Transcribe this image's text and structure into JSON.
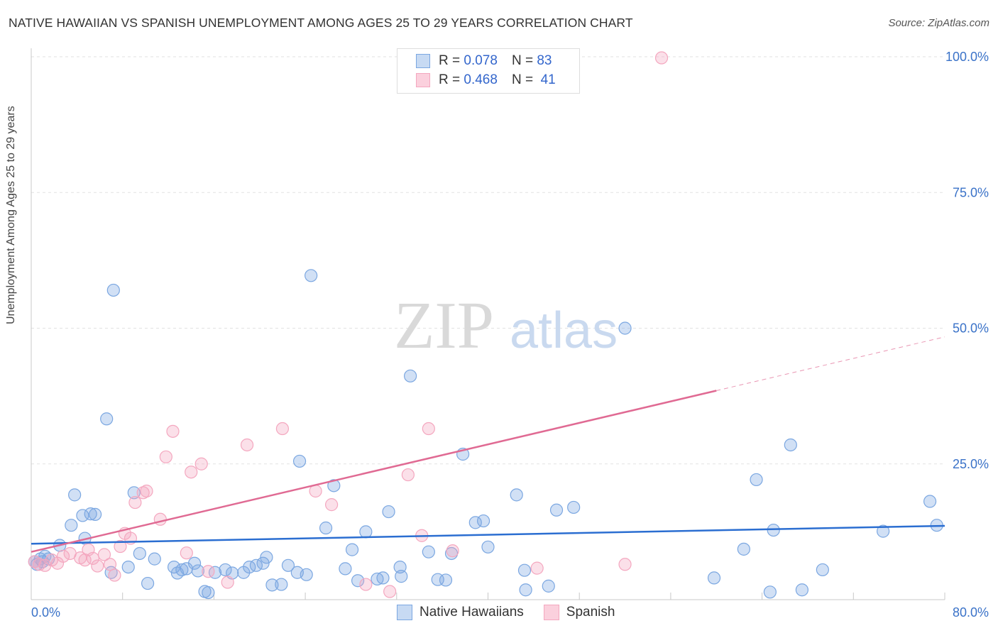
{
  "title": "NATIVE HAWAIIAN VS SPANISH UNEMPLOYMENT AMONG AGES 25 TO 29 YEARS CORRELATION CHART",
  "source": "Source: ZipAtlas.com",
  "watermark": {
    "zip": "ZIP",
    "atlas": "atlas"
  },
  "legend_top": {
    "rows": [
      {
        "r_label": "R =",
        "r_value": "0.078",
        "n_label": "N =",
        "n_value": "83",
        "color": "#7ba7e1"
      },
      {
        "r_label": "R =",
        "r_value": "0.468",
        "n_label": "N =",
        "n_value": "41",
        "color": "#f4a7bf"
      }
    ]
  },
  "legend_bottom": [
    {
      "label": "Native Hawaiians",
      "color": "#7ba7e1"
    },
    {
      "label": "Spanish",
      "color": "#f4a7bf"
    }
  ],
  "chart_data": {
    "type": "scatter",
    "title": "NATIVE HAWAIIAN VS SPANISH UNEMPLOYMENT AMONG AGES 25 TO 29 YEARS CORRELATION CHART",
    "xlabel": "",
    "ylabel": "Unemployment Among Ages 25 to 29 years",
    "xlim": [
      0,
      80
    ],
    "ylim": [
      0,
      100
    ],
    "x_tick_labels": [
      "0.0%",
      "80.0%"
    ],
    "y_tick_labels": [
      "25.0%",
      "50.0%",
      "75.0%",
      "100.0%"
    ],
    "y_ticks": [
      25,
      50,
      75,
      100
    ],
    "grid": true,
    "legend_position": "top-center",
    "series": [
      {
        "name": "Native Hawaiians",
        "color": "#7ba7e1",
        "line_color": "#2b6ed1",
        "trend": {
          "x": [
            0,
            80
          ],
          "y": [
            10.3,
            13.6
          ]
        },
        "points": [
          [
            0.3,
            7
          ],
          [
            0.5,
            6.5
          ],
          [
            0.8,
            7.5
          ],
          [
            1,
            7
          ],
          [
            1.2,
            8
          ],
          [
            1.5,
            7.5
          ],
          [
            2.5,
            10
          ],
          [
            3.5,
            13.7
          ],
          [
            3.8,
            19.3
          ],
          [
            4.5,
            15.5
          ],
          [
            4.7,
            11.3
          ],
          [
            5.2,
            15.8
          ],
          [
            5.6,
            15.7
          ],
          [
            6.6,
            33.3
          ],
          [
            7,
            5
          ],
          [
            7.2,
            57
          ],
          [
            8.5,
            6
          ],
          [
            9,
            19.7
          ],
          [
            9.5,
            8.5
          ],
          [
            10.2,
            3
          ],
          [
            10.8,
            7.5
          ],
          [
            12.5,
            6
          ],
          [
            12.8,
            4.9
          ],
          [
            13.2,
            5.5
          ],
          [
            13.6,
            5.7
          ],
          [
            14.3,
            6.7
          ],
          [
            14.6,
            5.3
          ],
          [
            15.2,
            1.5
          ],
          [
            15.5,
            1.3
          ],
          [
            16.1,
            5
          ],
          [
            17,
            5.5
          ],
          [
            17.6,
            4.9
          ],
          [
            18.6,
            5
          ],
          [
            19.1,
            6
          ],
          [
            19.7,
            6.3
          ],
          [
            20.3,
            6.7
          ],
          [
            20.6,
            7.8
          ],
          [
            21.1,
            2.7
          ],
          [
            21.9,
            2.8
          ],
          [
            22.5,
            6.3
          ],
          [
            23.3,
            5
          ],
          [
            24.1,
            4.6
          ],
          [
            23.5,
            25.5
          ],
          [
            24.5,
            59.7
          ],
          [
            25.8,
            13.2
          ],
          [
            26.5,
            21
          ],
          [
            27.5,
            5.7
          ],
          [
            28.1,
            9.2
          ],
          [
            28.6,
            3.5
          ],
          [
            29.3,
            12.5
          ],
          [
            30.3,
            3.8
          ],
          [
            30.8,
            4
          ],
          [
            31.3,
            16.2
          ],
          [
            32.3,
            6
          ],
          [
            32.4,
            4.3
          ],
          [
            33.2,
            41.2
          ],
          [
            34.8,
            8.8
          ],
          [
            35.6,
            3.7
          ],
          [
            36.3,
            3.6
          ],
          [
            36.8,
            8.5
          ],
          [
            37.8,
            26.8
          ],
          [
            38.9,
            14.2
          ],
          [
            39.6,
            14.5
          ],
          [
            40,
            9.7
          ],
          [
            42.5,
            19.3
          ],
          [
            43.2,
            5.4
          ],
          [
            43.3,
            1.8
          ],
          [
            45.3,
            2.5
          ],
          [
            46,
            16.5
          ],
          [
            47.5,
            17
          ],
          [
            52,
            50
          ],
          [
            59.8,
            4
          ],
          [
            62.4,
            9.3
          ],
          [
            63.5,
            22.1
          ],
          [
            64.7,
            1.4
          ],
          [
            65,
            12.8
          ],
          [
            66.5,
            28.5
          ],
          [
            67.5,
            1.8
          ],
          [
            69.3,
            5.5
          ],
          [
            74.6,
            12.6
          ],
          [
            78.7,
            18.1
          ],
          [
            79.3,
            13.7
          ]
        ]
      },
      {
        "name": "Spanish",
        "color": "#f4a7bf",
        "line_color": "#e06a93",
        "trend": {
          "x": [
            0,
            60
          ],
          "y": [
            8.8,
            38.5
          ],
          "dashed_to": {
            "x": 80,
            "y": 48.4
          }
        },
        "points": [
          [
            0.3,
            7
          ],
          [
            0.7,
            6.5
          ],
          [
            1.2,
            6.3
          ],
          [
            1.8,
            7.3
          ],
          [
            2.3,
            6.7
          ],
          [
            2.8,
            8
          ],
          [
            3.4,
            8.5
          ],
          [
            4.3,
            7.7
          ],
          [
            4.7,
            7.3
          ],
          [
            5,
            9.2
          ],
          [
            5.4,
            7.6
          ],
          [
            5.8,
            6.2
          ],
          [
            6.4,
            8.3
          ],
          [
            6.9,
            6.5
          ],
          [
            7.3,
            4.5
          ],
          [
            7.8,
            9.8
          ],
          [
            8.2,
            12.2
          ],
          [
            8.7,
            11.3
          ],
          [
            9.1,
            17.9
          ],
          [
            9.8,
            19.7
          ],
          [
            10.1,
            20
          ],
          [
            11.3,
            14.8
          ],
          [
            11.8,
            26.3
          ],
          [
            12.4,
            31
          ],
          [
            13.6,
            8.6
          ],
          [
            14,
            23.5
          ],
          [
            14.9,
            25
          ],
          [
            15.5,
            5.2
          ],
          [
            17.2,
            3.2
          ],
          [
            18.9,
            28.5
          ],
          [
            22,
            31.5
          ],
          [
            24.9,
            20
          ],
          [
            26.3,
            17.5
          ],
          [
            29.3,
            2.8
          ],
          [
            31.4,
            1.5
          ],
          [
            33,
            23
          ],
          [
            34.2,
            11.8
          ],
          [
            34.8,
            31.5
          ],
          [
            36.9,
            9
          ],
          [
            44.3,
            5.8
          ],
          [
            52,
            6.5
          ],
          [
            55.2,
            99.8
          ]
        ]
      }
    ]
  }
}
